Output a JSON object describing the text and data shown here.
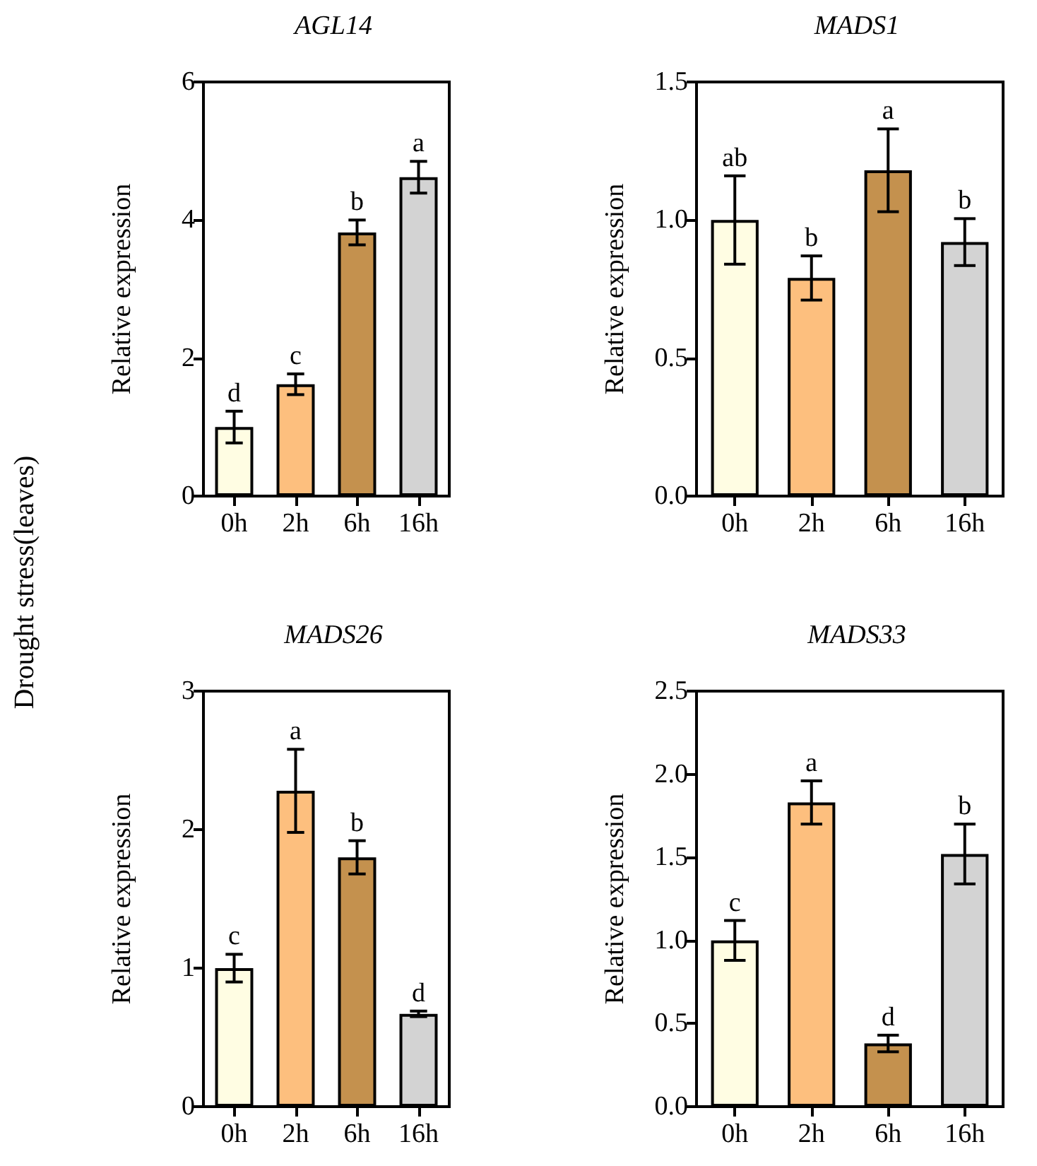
{
  "chart_data": [
    {
      "type": "bar",
      "title": "AGL14",
      "ylabel": "Relative expression",
      "categories": [
        "0h",
        "2h",
        "6h",
        "16h"
      ],
      "values": [
        1.0,
        1.62,
        3.82,
        4.62
      ],
      "errors": [
        0.23,
        0.15,
        0.18,
        0.23
      ],
      "colors": [
        "#fffde3",
        "#fdbf7e",
        "#c4914e",
        "#d3d3d3"
      ],
      "ylim": [
        0,
        6
      ],
      "yticks": [
        0,
        2,
        4,
        6
      ],
      "annotations": [
        "Drought stress(leaves)",
        {
          "text": "d",
          "x": "0h",
          "y": 1.23
        },
        {
          "text": "c",
          "x": "2h",
          "y": 1.77
        },
        {
          "text": "b",
          "x": "6h",
          "y": 4.0
        },
        {
          "text": "a",
          "x": "16h",
          "y": 4.85
        }
      ]
    },
    {
      "type": "bar",
      "title": "MADS1",
      "ylabel": "Relative expression",
      "categories": [
        "0h",
        "2h",
        "6h",
        "16h"
      ],
      "values": [
        1.0,
        0.79,
        1.18,
        0.92
      ],
      "errors": [
        0.16,
        0.08,
        0.15,
        0.085
      ],
      "colors": [
        "#fffde3",
        "#fdbf7e",
        "#c4914e",
        "#d3d3d3"
      ],
      "ylim": [
        0,
        1.5
      ],
      "yticks": [
        {
          "value": 0,
          "label": "0.0"
        },
        {
          "value": 0.5,
          "label": "0.5"
        },
        {
          "value": 1,
          "label": "1.0"
        },
        {
          "value": 1.5,
          "label": "1.5"
        }
      ],
      "annotations": [
        {
          "text": "ab",
          "x": "0h",
          "y": 1.16
        },
        {
          "text": "b",
          "x": "2h",
          "y": 0.87
        },
        {
          "text": "a",
          "x": "6h",
          "y": 1.33
        },
        {
          "text": "b",
          "x": "16h",
          "y": 1.005
        }
      ]
    },
    {
      "type": "bar",
      "title": "MADS26",
      "ylabel": "Relative expression",
      "categories": [
        "0h",
        "2h",
        "6h",
        "16h"
      ],
      "values": [
        1.0,
        2.28,
        1.8,
        0.67
      ],
      "errors": [
        0.1,
        0.3,
        0.12,
        0.02
      ],
      "colors": [
        "#fffde3",
        "#fdbf7e",
        "#c4914e",
        "#d3d3d3"
      ],
      "ylim": [
        0,
        3
      ],
      "yticks": [
        0,
        1,
        2,
        3
      ],
      "annotations": [
        {
          "text": "c",
          "x": "0h",
          "y": 1.1
        },
        {
          "text": "a",
          "x": "2h",
          "y": 2.58
        },
        {
          "text": "b",
          "x": "6h",
          "y": 1.92
        },
        {
          "text": "d",
          "x": "16h",
          "y": 0.69
        }
      ]
    },
    {
      "type": "bar",
      "title": "MADS33",
      "ylabel": "Relative expression",
      "categories": [
        "0h",
        "2h",
        "6h",
        "16h"
      ],
      "values": [
        1.0,
        1.83,
        0.38,
        1.52
      ],
      "errors": [
        0.12,
        0.13,
        0.05,
        0.18
      ],
      "colors": [
        "#fffde3",
        "#fdbf7e",
        "#c4914e",
        "#d3d3d3"
      ],
      "ylim": [
        0,
        2.5
      ],
      "yticks": [
        {
          "value": 0,
          "label": "0.0"
        },
        {
          "value": 0.5,
          "label": "0.5"
        },
        {
          "value": 1,
          "label": "1.0"
        },
        {
          "value": 1.5,
          "label": "1.5"
        },
        {
          "value": 2,
          "label": "2.0"
        },
        {
          "value": 2.5,
          "label": "2.5"
        }
      ],
      "annotations": [
        {
          "text": "c",
          "x": "0h",
          "y": 1.12
        },
        {
          "text": "a",
          "x": "2h",
          "y": 1.96
        },
        {
          "text": "d",
          "x": "6h",
          "y": 0.43
        },
        {
          "text": "b",
          "x": "16h",
          "y": 1.7
        }
      ]
    }
  ]
}
